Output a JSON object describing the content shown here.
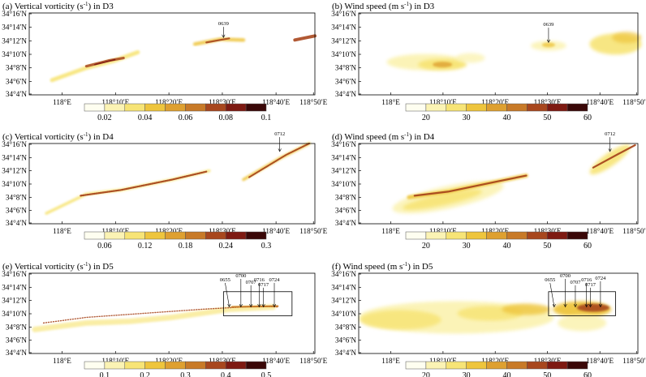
{
  "colors": {
    "scale": [
      "#fefef0",
      "#fbf3b4",
      "#f7e476",
      "#eec53d",
      "#dea030",
      "#c87a28",
      "#a8471e",
      "#7e1a12",
      "#3a0808"
    ]
  },
  "x_ticks": [
    "118°E",
    "118°10′E",
    "118°20′E",
    "118°30′E",
    "118°40′E",
    "118°50′E"
  ],
  "y_ticks": [
    "34°16′N",
    "34°14′N",
    "34°12′N",
    "34°10′N",
    "34°8′N",
    "34°6′N",
    "34°4′N"
  ],
  "panels": [
    {
      "id": "a",
      "title": "(a) Vertical vorticity (s",
      "title_sup": "-1",
      "title_end": ") in D3",
      "colorbar_labels": [
        "0.02",
        "0.04",
        "0.06",
        "0.08",
        "0.1"
      ],
      "annotations": [
        "0639"
      ]
    },
    {
      "id": "b",
      "title": "(b) Wind speed (m s",
      "title_sup": "-1",
      "title_end": ") in D3",
      "colorbar_labels": [
        "20",
        "30",
        "40",
        "50",
        "60"
      ],
      "annotations": [
        "0639"
      ]
    },
    {
      "id": "c",
      "title": "(c) Vertical vorticity (s",
      "title_sup": "-1",
      "title_end": ") in D4",
      "colorbar_labels": [
        "0.06",
        "0.12",
        "0.18",
        "0.24",
        "0.3"
      ],
      "annotations": [
        "0712"
      ]
    },
    {
      "id": "d",
      "title": "(d) Wind speed (m s",
      "title_sup": "-1",
      "title_end": ") in D4",
      "colorbar_labels": [
        "20",
        "30",
        "40",
        "50",
        "60"
      ],
      "annotations": [
        "0712"
      ]
    },
    {
      "id": "e",
      "title": "(e) Vertical vorticity (s",
      "title_sup": "-1",
      "title_end": ") in D5",
      "colorbar_labels": [
        "0.1",
        "0.2",
        "0.3",
        "0.4",
        "0.5"
      ],
      "annotations": [
        "0655",
        "0700",
        "0707",
        "0716",
        "0717",
        "0724"
      ]
    },
    {
      "id": "f",
      "title": "(f) Wind speed (m s",
      "title_sup": "-1",
      "title_end": ") in D5",
      "colorbar_labels": [
        "20",
        "30",
        "40",
        "50",
        "60"
      ],
      "annotations": [
        "0655",
        "0700",
        "0707",
        "0716",
        "0717",
        "0724"
      ]
    }
  ]
}
